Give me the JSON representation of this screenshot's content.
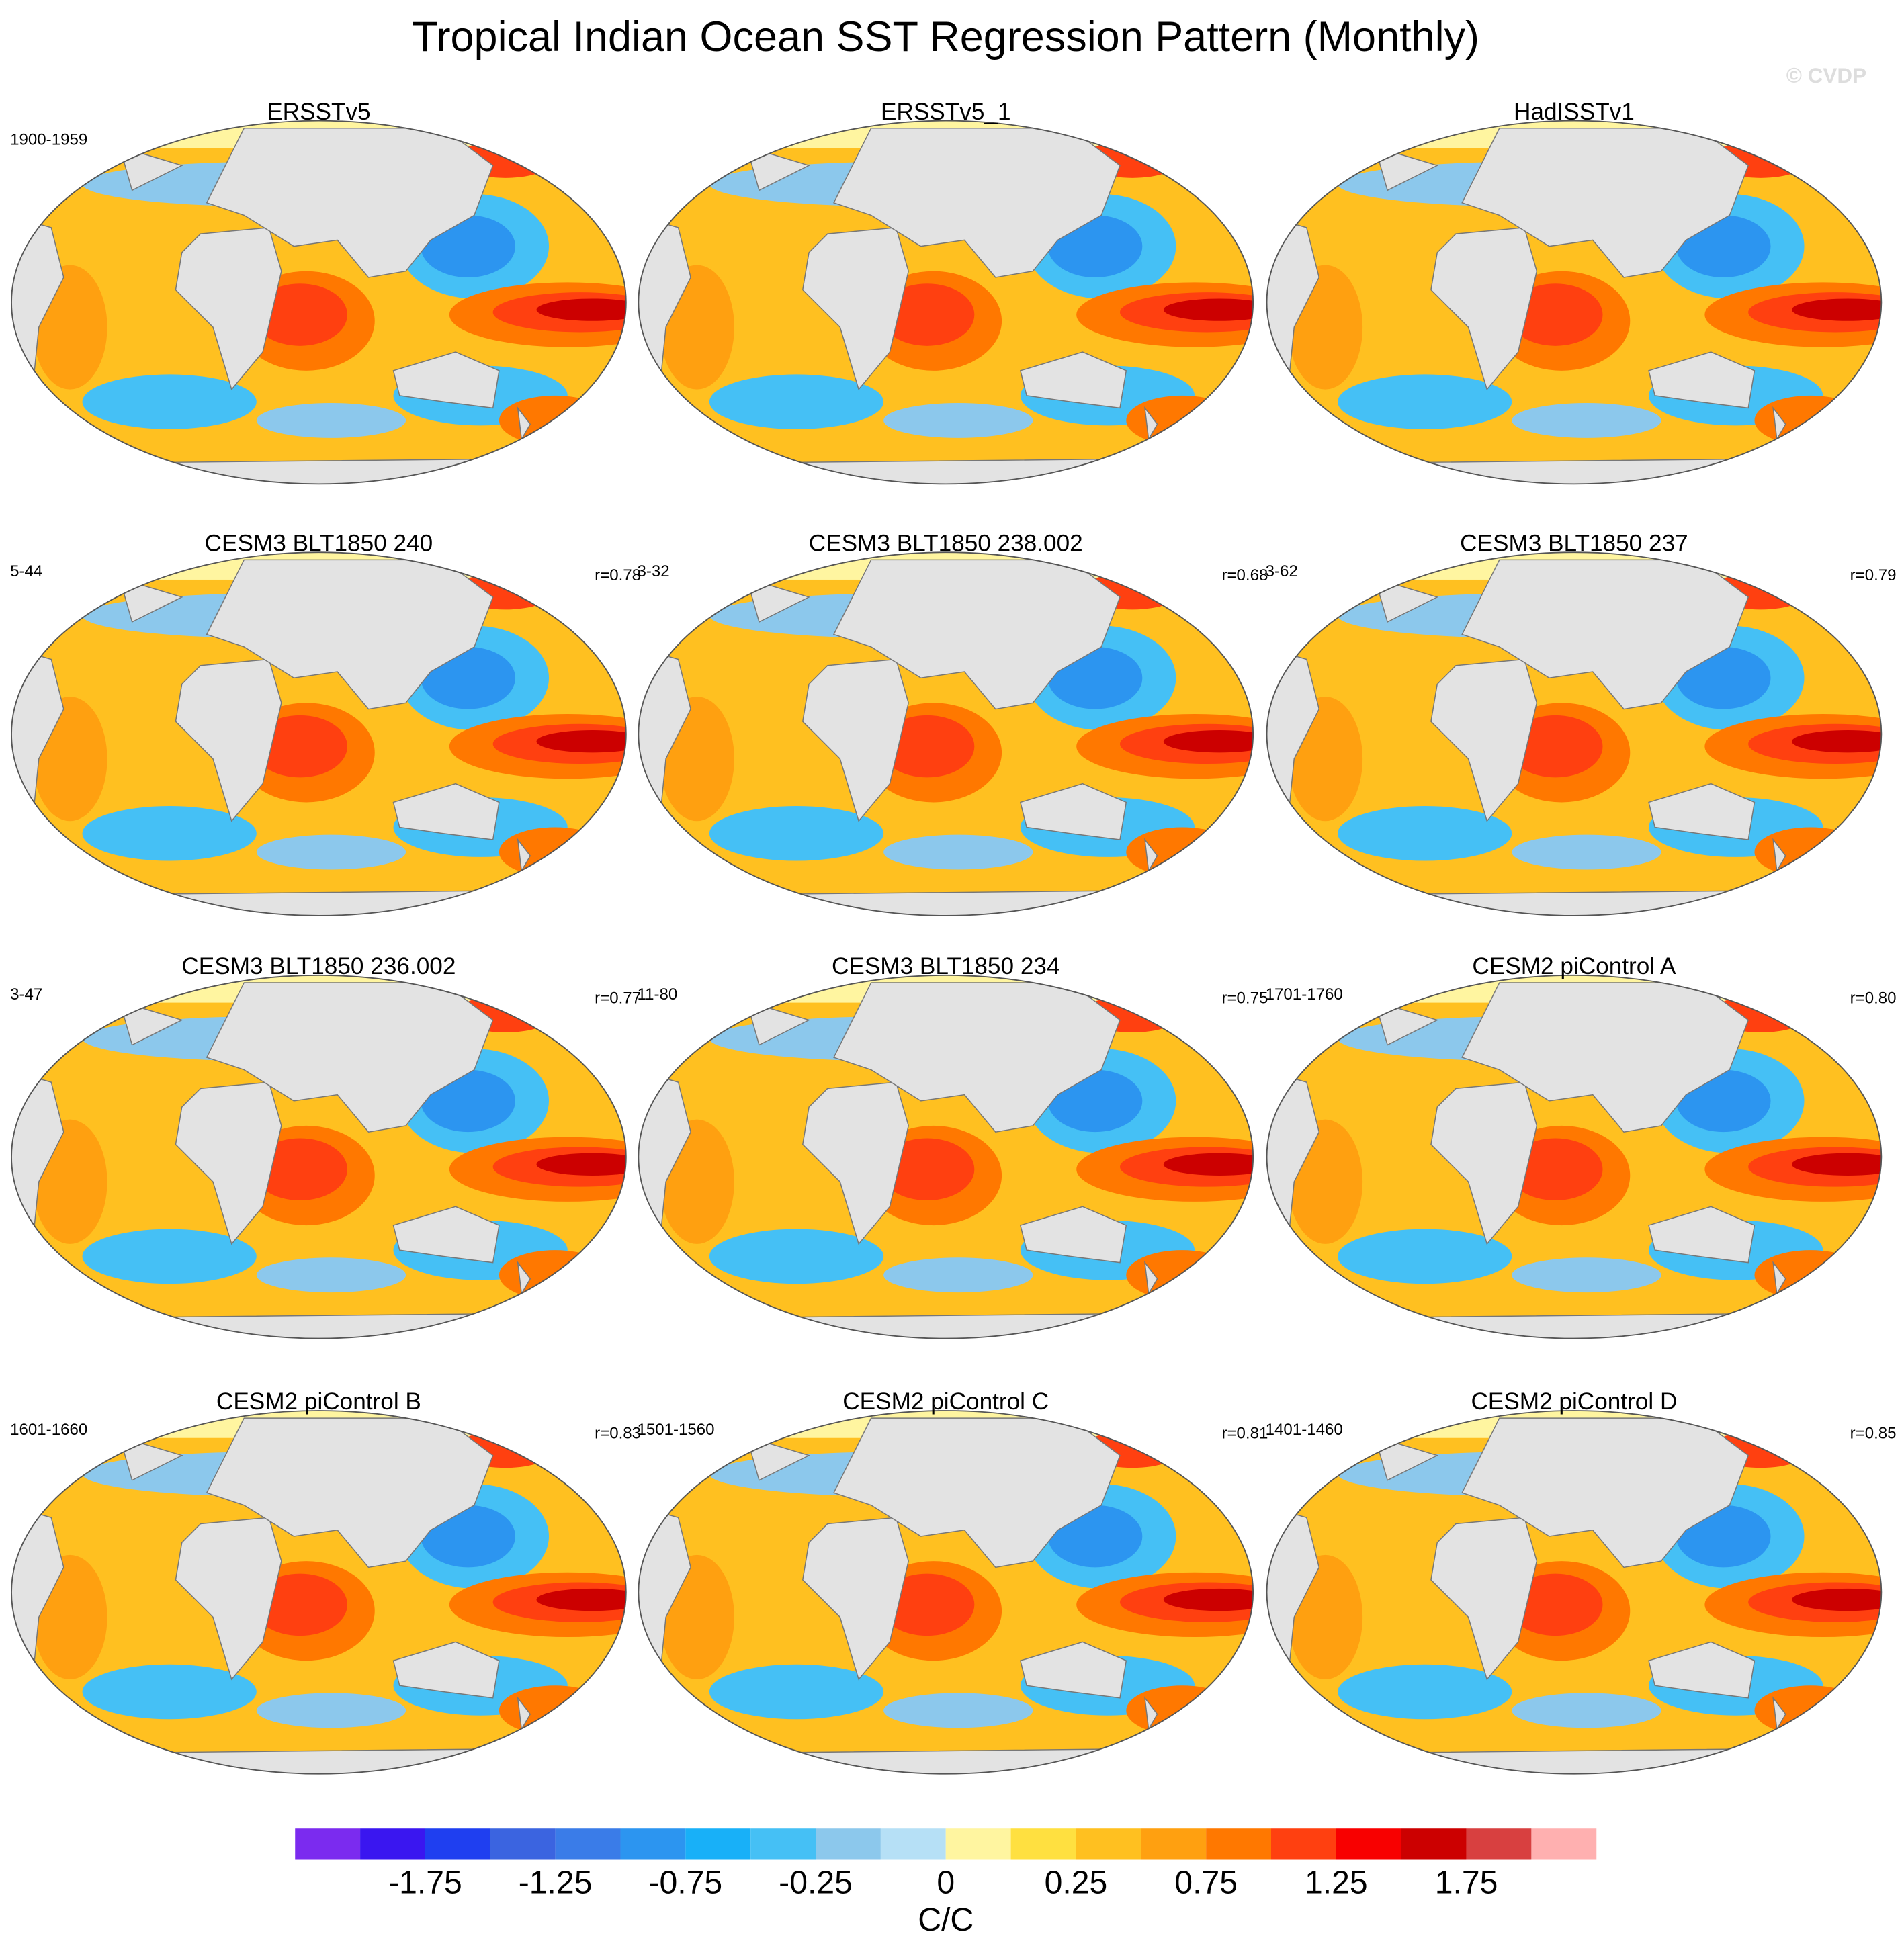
{
  "title": "Tropical Indian Ocean SST Regression Pattern (Monthly)",
  "watermark": "© CVDP",
  "panels": [
    {
      "title": "ERSSTv5",
      "period": "1900-1959"
    },
    {
      "title": "ERSSTv5_1"
    },
    {
      "title": "HadISSTv1"
    },
    {
      "title": "CESM3 BLT1850 240",
      "period": "5-44",
      "r": "r=0.78"
    },
    {
      "title": "CESM3 BLT1850 238.002",
      "period": "3-32",
      "r": "r=0.68"
    },
    {
      "title": "CESM3 BLT1850 237",
      "period": "3-62",
      "r": "r=0.79"
    },
    {
      "title": "CESM3 BLT1850 236.002",
      "period": "3-47",
      "r": "r=0.77"
    },
    {
      "title": "CESM3 BLT1850 234",
      "period": "11-80",
      "r": "r=0.75"
    },
    {
      "title": "CESM2 piControl A",
      "period": "1701-1760",
      "r": "r=0.80"
    },
    {
      "title": "CESM2 piControl B",
      "period": "1601-1660",
      "r": "r=0.83"
    },
    {
      "title": "CESM2 piControl C",
      "period": "1501-1560",
      "r": "r=0.81"
    },
    {
      "title": "CESM2 piControl D",
      "period": "1401-1460",
      "r": "r=0.85"
    }
  ],
  "colorbar": {
    "colors": [
      "#7b2bef",
      "#3a16f0",
      "#1f3ff0",
      "#3b64e0",
      "#3a7ce8",
      "#2c95f0",
      "#18b0f8",
      "#45c0f5",
      "#8cc8ec",
      "#b6e0f6",
      "#fff5a0",
      "#ffe040",
      "#ffc020",
      "#ffa010",
      "#ff7800",
      "#ff4010",
      "#f80000",
      "#cc0000",
      "#d84040",
      "#ffb0b0"
    ],
    "ticks": [
      -1.75,
      -1.25,
      -0.75,
      -0.25,
      0,
      0.25,
      0.75,
      1.25,
      1.75
    ],
    "label": "C/C"
  }
}
